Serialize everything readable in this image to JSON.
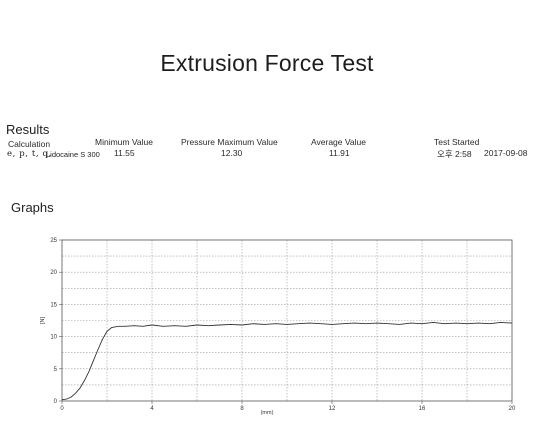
{
  "page": {
    "title": "Extrusion Force Test"
  },
  "results": {
    "heading": "Results",
    "calculation_label": "Calculation",
    "calculation_prefix": "e, p, t, q,",
    "calculation_name": "Lidocaine S 300",
    "minimum_label": "Minimum Value",
    "minimum_value": "11.55",
    "pressure_max_label": "Pressure Maximum Value",
    "pressure_max_value": "12.30",
    "average_label": "Average Value",
    "average_value": "11.91",
    "test_started_label": "Test Started",
    "test_started_time": "오후 2:58",
    "test_started_date": "2017-09-08"
  },
  "graphs": {
    "heading": "Graphs"
  },
  "colors": {
    "line": "#333333",
    "grid": "#9a9a9a",
    "frame": "#555555"
  },
  "chart_data": {
    "type": "line",
    "title": "",
    "xlabel": "(mm)",
    "ylabel": "[N]",
    "xlim": [
      0,
      20
    ],
    "ylim": [
      0,
      25
    ],
    "x_ticks": [
      0,
      4,
      8,
      12,
      16,
      20
    ],
    "y_ticks": [
      0,
      5,
      10,
      15,
      20,
      25
    ],
    "grid": true,
    "series": [
      {
        "x": [
          0,
          0.2,
          0.4,
          0.6,
          0.8,
          1.0,
          1.2,
          1.4,
          1.6,
          1.8,
          2.0,
          2.2,
          2.5,
          2.8,
          3.2,
          3.6,
          4.0,
          4.5,
          5.0,
          5.5,
          6.0,
          6.5,
          7.0,
          7.5,
          8.0,
          8.5,
          9.0,
          9.5,
          10.0,
          10.5,
          11.0,
          11.5,
          12.0,
          12.5,
          13.0,
          13.5,
          14.0,
          14.5,
          15.0,
          15.5,
          16.0,
          16.5,
          17.0,
          17.5,
          18.0,
          18.5,
          19.0,
          19.5,
          20.0
        ],
        "y": [
          0.2,
          0.3,
          0.6,
          1.2,
          2.0,
          3.2,
          4.6,
          6.3,
          8.0,
          9.6,
          10.8,
          11.4,
          11.6,
          11.6,
          11.7,
          11.6,
          11.8,
          11.6,
          11.7,
          11.6,
          11.8,
          11.7,
          11.8,
          11.9,
          11.8,
          12.0,
          11.9,
          12.0,
          11.9,
          12.0,
          12.1,
          12.0,
          11.9,
          12.0,
          12.1,
          12.0,
          12.1,
          12.0,
          11.9,
          12.1,
          12.0,
          12.2,
          12.0,
          12.1,
          12.0,
          12.1,
          12.0,
          12.2,
          12.1
        ]
      }
    ]
  }
}
